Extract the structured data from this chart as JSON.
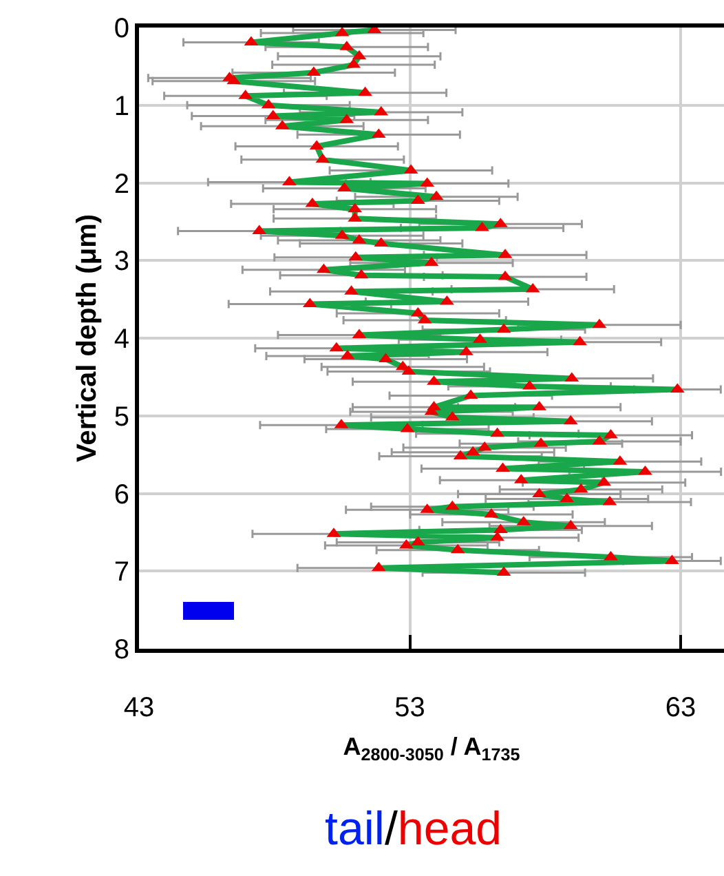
{
  "chart_data": {
    "type": "line",
    "xlabel": "A$_{2800-3050}$ / A$_{1735}$",
    "ylabel": "Vertical depth (μm)",
    "annotations": [
      "tail",
      "/",
      "head"
    ],
    "xlim": [
      43,
      64.6
    ],
    "xticks": [
      43,
      53,
      63
    ],
    "ylim": [
      8,
      0
    ],
    "yticks": [
      0,
      1,
      2,
      3,
      4,
      5,
      6,
      7,
      8
    ],
    "grid": true,
    "marker": "triangle",
    "line_style": "solid",
    "series": [
      {
        "color": "#1aa64a",
        "x": [
          51.69,
          50.5,
          47.14,
          50.67,
          51.13,
          50.92,
          49.45,
          46.34,
          46.5,
          51.35,
          46.93,
          47.78,
          51.94,
          47.95,
          50.67,
          48.29,
          51.85,
          49.56,
          49.78,
          53.04,
          48.55,
          53.64,
          50.58,
          53.98,
          53.3,
          49.4,
          50.97,
          50.97,
          56.35,
          55.67,
          47.44,
          50.5,
          51.13,
          51.94,
          56.52,
          51.0,
          53.8,
          49.82,
          51.21,
          56.52,
          57.54,
          50.84,
          54.37,
          49.31,
          53.3,
          53.55,
          60.0,
          56.47,
          51.13,
          55.59,
          59.28,
          50.29,
          55.08,
          50.7,
          52.11,
          52.74,
          52.96,
          58.98,
          53.89,
          57.42,
          62.88,
          55.25,
          53.89,
          57.78,
          53.8,
          54.57,
          58.94,
          50.47,
          52.91,
          56.23,
          60.42,
          60.0,
          57.84,
          55.76,
          55.33,
          54.87,
          60.76,
          56.43,
          61.69,
          57.11,
          60.17,
          59.32,
          57.78,
          58.8,
          60.38,
          54.57,
          53.64,
          56.01,
          57.2,
          58.94,
          56.35,
          50.19,
          56.23,
          53.3,
          52.87,
          54.77,
          60.42,
          62.68,
          51.85,
          56.47
        ],
        "values": [
          0.03,
          0.07,
          0.19,
          0.25,
          0.37,
          0.48,
          0.58,
          0.65,
          0.69,
          0.84,
          0.88,
          1.0,
          1.09,
          1.14,
          1.19,
          1.27,
          1.38,
          1.53,
          1.7,
          1.84,
          1.99,
          2.01,
          2.07,
          2.18,
          2.23,
          2.27,
          2.34,
          2.46,
          2.53,
          2.58,
          2.62,
          2.68,
          2.74,
          2.78,
          2.93,
          2.96,
          3.03,
          3.12,
          3.19,
          3.21,
          3.37,
          3.4,
          3.53,
          3.56,
          3.68,
          3.77,
          3.83,
          3.89,
          3.96,
          4.02,
          4.05,
          4.13,
          4.18,
          4.23,
          4.27,
          4.37,
          4.43,
          4.52,
          4.56,
          4.62,
          4.66,
          4.74,
          4.89,
          4.89,
          4.95,
          5.02,
          5.07,
          5.12,
          5.17,
          5.23,
          5.25,
          5.33,
          5.36,
          5.41,
          5.47,
          5.52,
          5.59,
          5.68,
          5.72,
          5.83,
          5.86,
          5.95,
          6.01,
          6.07,
          6.11,
          6.17,
          6.21,
          6.27,
          6.37,
          6.42,
          6.47,
          6.52,
          6.57,
          6.63,
          6.67,
          6.73,
          6.82,
          6.87,
          6.96,
          7.02
        ],
        "colors": [
          "#ee0000",
          "#ee0000",
          "#ee0000",
          "#ee0000",
          "#ee0000",
          "#ee0000",
          "#ee0000",
          "#ee0000",
          "#ee0000",
          "#ee0000",
          "#ee0000",
          "#ee0000",
          "#ee0000",
          "#ee0000",
          "#ee0000",
          "#ee0000",
          "#ee0000",
          "#ee0000",
          "#ee0000",
          "#ee0000",
          "#ee0000",
          "#ee0000",
          "#ee0000",
          "#ee0000",
          "#ee0000",
          "#ee0000",
          "#ee0000",
          "#ee0000",
          "#ee0000",
          "#ee0000",
          "#ee0000",
          "#ee0000",
          "#ee0000",
          "#ee0000",
          "#ee0000",
          "#ee0000",
          "#ee0000",
          "#ee0000",
          "#ee0000",
          "#ee0000",
          "#ee0000",
          "#ee0000",
          "#ee0000",
          "#ee0000",
          "#ee0000",
          "#ee0000",
          "#ee0000",
          "#ee0000",
          "#ee0000",
          "#ee0000",
          "#ee0000",
          "#ee0000",
          "#ee0000",
          "#ee0000",
          "#ee0000",
          "#ee0000",
          "#ee0000",
          "#ee0000",
          "#ee0000",
          "#ee0000",
          "#ee0000",
          "#ee0000",
          "#ee0000",
          "#ee0000",
          "#ee0000",
          "#ee0000",
          "#ee0000",
          "#ee0000",
          "#ee0000",
          "#ee0000",
          "#ee0000",
          "#ee0000",
          "#ee0000",
          "#ee0000",
          "#ee0000",
          "#ee0000",
          "#ee0000",
          "#ee0000",
          "#ee0000",
          "#ee0000",
          "#ee0000",
          "#ee0000",
          "#ee0000",
          "#ee0000",
          "#ee0000",
          "#ee0000",
          "#ee0000",
          "#ee0000",
          "#ee0000",
          "#ee0000",
          "#ee0000",
          "#ee0000",
          "#ee0000",
          "#ee0000",
          "#ee0000",
          "#ee0000",
          "#ee0000",
          "#ee0000",
          "#ee0000",
          "#ee0000"
        ],
        "xerrors": [
          3,
          3,
          2.5,
          3,
          3,
          3,
          3,
          3,
          3,
          3,
          3,
          3,
          3,
          3,
          3,
          3,
          3,
          3,
          3,
          3,
          3,
          3,
          3,
          3,
          3,
          3,
          3,
          3,
          3,
          3,
          3,
          3,
          3,
          3,
          3,
          3,
          3,
          3,
          3,
          3,
          3,
          3,
          3,
          3,
          3,
          3,
          3,
          3,
          3,
          3,
          3,
          3,
          3,
          3,
          3,
          3,
          3,
          3,
          3,
          3,
          1.6,
          3,
          3,
          3,
          3,
          3,
          3,
          3,
          3,
          3,
          3,
          3,
          3,
          3,
          3,
          3,
          3,
          3,
          2.8,
          3,
          3,
          3,
          3,
          3,
          3,
          3,
          3,
          3,
          3,
          3,
          3,
          3,
          3,
          3,
          3,
          3,
          3,
          1.8,
          3,
          3
        ]
      }
    ]
  }
}
